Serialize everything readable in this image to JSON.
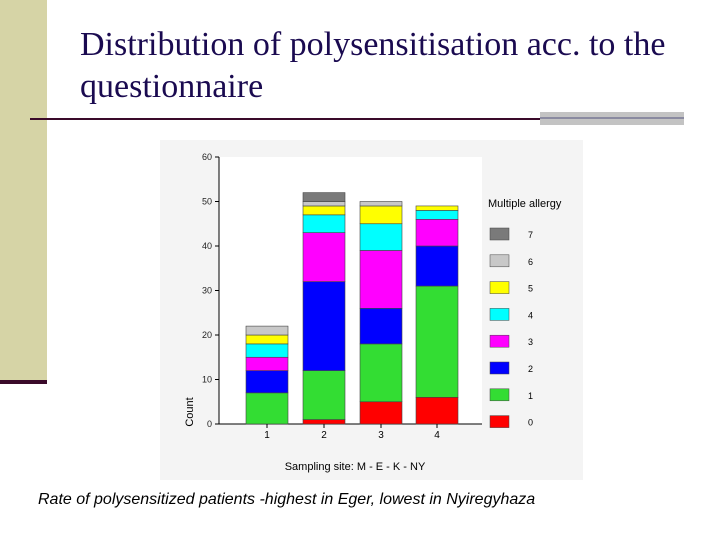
{
  "slide": {
    "title": "Distribution of polysensitisation acc. to the questionnaire",
    "caption": "Rate of polysensitized patients  -highest in Eger, lowest in Nyiregyhaza"
  },
  "chart_data": {
    "type": "bar",
    "stacked": true,
    "categories": [
      "1",
      "2",
      "3",
      "4"
    ],
    "xlabel": "Sampling site: M - E - K - NY",
    "ylabel": "Count",
    "ylim": [
      0,
      60
    ],
    "yticks": [
      0,
      10,
      20,
      30,
      40,
      50,
      60
    ],
    "legend_title": "Multiple allergy",
    "legend_position": "right",
    "series": [
      {
        "name": "0",
        "color": "#ff0000",
        "values": [
          0,
          1,
          5,
          6
        ]
      },
      {
        "name": "1",
        "color": "#33dd33",
        "values": [
          7,
          11,
          13,
          25
        ]
      },
      {
        "name": "2",
        "color": "#0000ff",
        "values": [
          5,
          20,
          8,
          9
        ]
      },
      {
        "name": "3",
        "color": "#ff00ff",
        "values": [
          3,
          11,
          13,
          6
        ]
      },
      {
        "name": "4",
        "color": "#00ffff",
        "values": [
          3,
          4,
          6,
          2
        ]
      },
      {
        "name": "5",
        "color": "#ffff00",
        "values": [
          2,
          2,
          4,
          1
        ]
      },
      {
        "name": "6",
        "color": "#c8c8c8",
        "values": [
          2,
          1,
          1,
          0
        ]
      },
      {
        "name": "7",
        "color": "#7a7a7a",
        "values": [
          0,
          2,
          0,
          0
        ]
      }
    ]
  }
}
